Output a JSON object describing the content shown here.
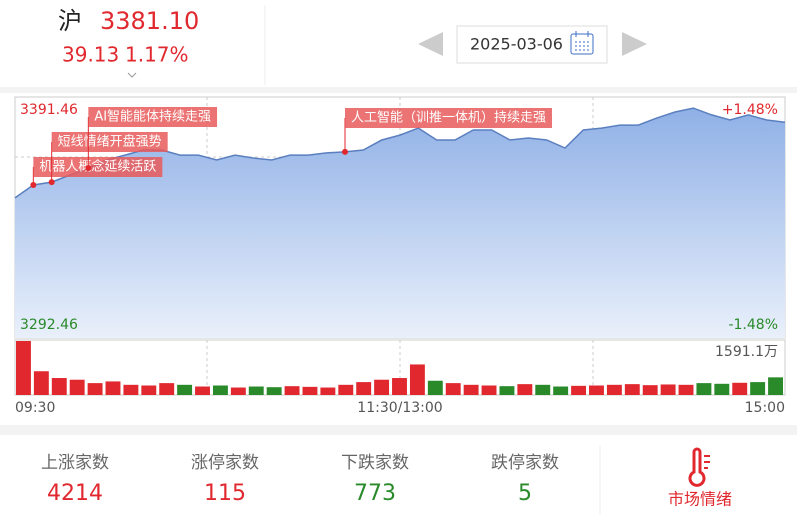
{
  "header": {
    "market": "沪",
    "price": "3381.10",
    "change": "39.13",
    "change_pct": "1.17%",
    "date": "2025-03-06"
  },
  "chart": {
    "ylim": [
      3292.46,
      3391.46
    ],
    "pct_top": "+1.48%",
    "pct_bottom": "-1.48%",
    "prices": [
      3350.0,
      3355.3,
      3356.5,
      3359.4,
      3362.3,
      3365.6,
      3367.6,
      3369.7,
      3369.7,
      3367.6,
      3367.6,
      3365.6,
      3367.6,
      3366.4,
      3365.6,
      3367.6,
      3367.6,
      3368.5,
      3368.9,
      3369.7,
      3373.8,
      3375.8,
      3378.7,
      3373.8,
      3373.8,
      3377.9,
      3377.9,
      3373.8,
      3374.6,
      3373.8,
      3370.5,
      3377.9,
      3378.7,
      3379.9,
      3379.9,
      3382.8,
      3385.3,
      3386.9,
      3384.1,
      3382.0,
      3384.1,
      3382.0,
      3381.1
    ],
    "volume_max": {
      "value": 1591.1,
      "label": "1591.1万"
    },
    "volumes": [
      1591.1,
      700,
      500,
      450,
      350,
      400,
      300,
      280,
      350,
      300,
      250,
      280,
      220,
      250,
      230,
      260,
      240,
      220,
      300,
      380,
      450,
      500,
      900,
      420,
      350,
      300,
      280,
      260,
      320,
      300,
      250,
      270,
      280,
      300,
      320,
      290,
      310,
      300,
      350,
      330,
      360,
      380,
      520
    ],
    "annotations": [
      "机器人概念延续活跃",
      "短线情绪开盘强势",
      "AI智能能体持续走强",
      "人工智能（训推一体机）持续走强"
    ],
    "times": [
      "09:30",
      "11:30/13:00",
      "15:00"
    ]
  },
  "stats": [
    {
      "label": "上涨家数",
      "value": "4214"
    },
    {
      "label": "涨停家数",
      "value": "115"
    },
    {
      "label": "下跌家数",
      "value": "773"
    },
    {
      "label": "跌停家数",
      "value": "5"
    }
  ],
  "sentiment": "市场情绪"
}
